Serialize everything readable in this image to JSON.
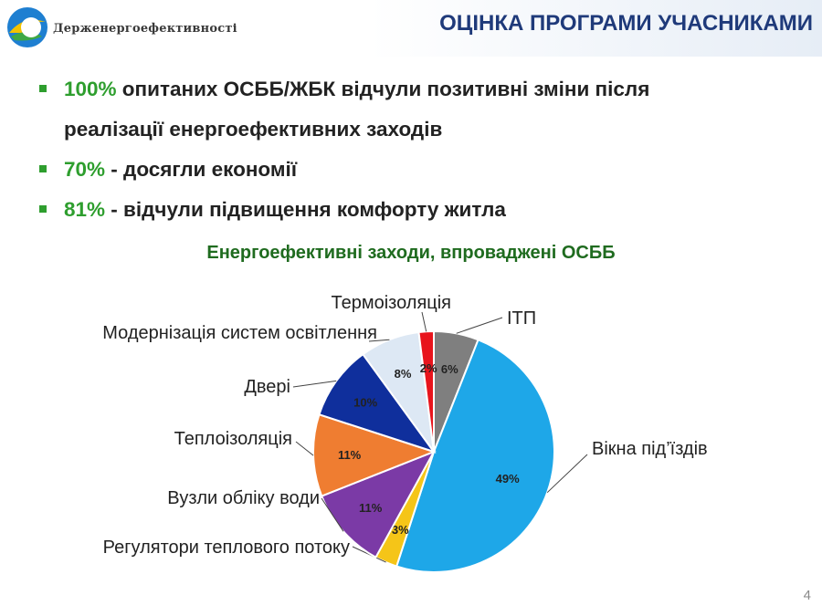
{
  "header": {
    "org_name": "Держенергоефективності",
    "title": "ОЦІНКА ПРОГРАМИ УЧАСНИКАМИ"
  },
  "bullets": [
    {
      "pct": "100%",
      "text": " опитаних ОСББ/ЖБК відчули позитивні зміни після"
    },
    {
      "pct": "",
      "text": "реалізації енергоефективних заходів"
    },
    {
      "pct": "70%",
      "text": " - досягли економії"
    },
    {
      "pct": "81%",
      "text": " - відчули підвищення комфорту житла"
    }
  ],
  "colors": {
    "accent_green": "#2e9e2e",
    "title_blue": "#1f3a7a"
  },
  "chart_data": {
    "type": "pie",
    "title": "Енергоефективні заходи, впроваджені ОСББ",
    "slices": [
      {
        "label": "ІТП",
        "value": 6,
        "value_label": "6%",
        "color": "#7f7f7f"
      },
      {
        "label": "Вікна під’їздів",
        "value": 49,
        "value_label": "49%",
        "color": "#1ea7e8"
      },
      {
        "label": "Регулятори теплового потоку",
        "value": 3,
        "value_label": "3%",
        "color": "#f5c518"
      },
      {
        "label": "Вузли обліку води",
        "value": 11,
        "value_label": "11%",
        "color": "#7b3aa6"
      },
      {
        "label": "Теплоізоляція",
        "value": 11,
        "value_label": "11%",
        "color": "#ef7d31"
      },
      {
        "label": "Двері",
        "value": 10,
        "value_label": "10%",
        "color": "#0f2f9c"
      },
      {
        "label": "Модернізація систем освітлення",
        "value": 8,
        "value_label": "8%",
        "color": "#dde8f4"
      },
      {
        "label": "Термоізоляція",
        "value": 2,
        "value_label": "2%",
        "color": "#e8141c"
      }
    ],
    "legend": "none"
  },
  "page_number": "4"
}
